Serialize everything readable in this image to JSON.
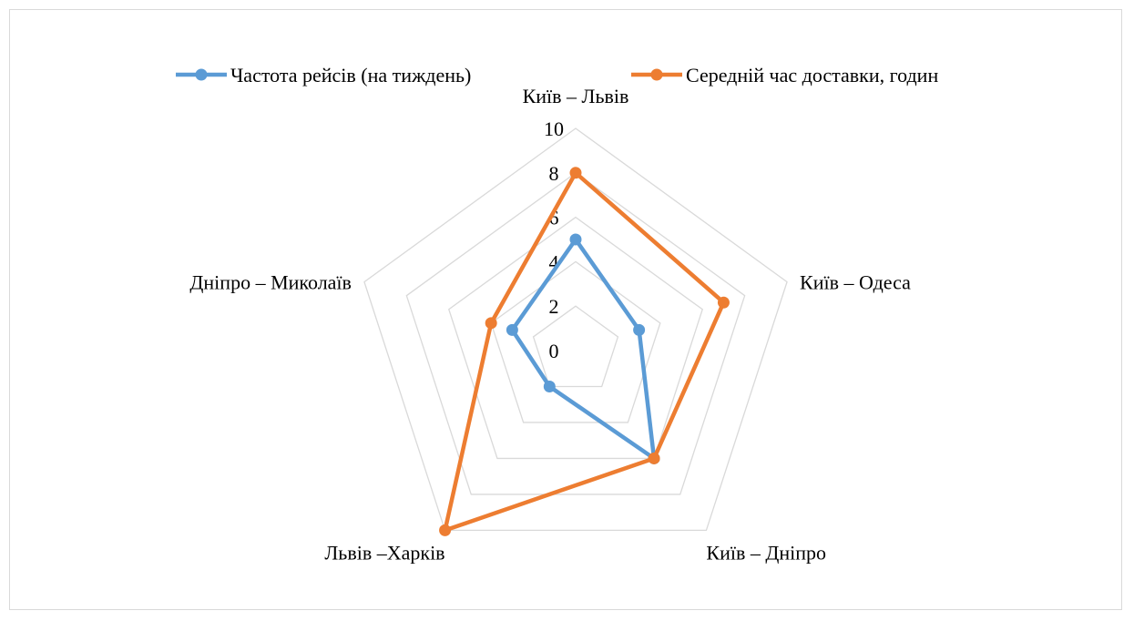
{
  "chart_data": {
    "type": "radar",
    "categories": [
      "Київ – Львів",
      "Київ – Одеса",
      "Київ – Дніпро",
      "Львів –Харків",
      "Дніпро – Миколаїв"
    ],
    "series": [
      {
        "name": "Частота рейсів (на тиждень)",
        "color": "#5b9bd5",
        "values": [
          5,
          3,
          6,
          2,
          3
        ]
      },
      {
        "name": "Середній час доставки, годин",
        "color": "#ed7d31",
        "values": [
          8,
          7,
          6,
          10,
          4
        ]
      }
    ],
    "rlim": [
      0,
      10
    ],
    "ticks": [
      "0",
      "2",
      "4",
      "6",
      "8",
      "10"
    ],
    "grid": true,
    "grid_color": "#d9d9d9",
    "legend_position": "top"
  }
}
